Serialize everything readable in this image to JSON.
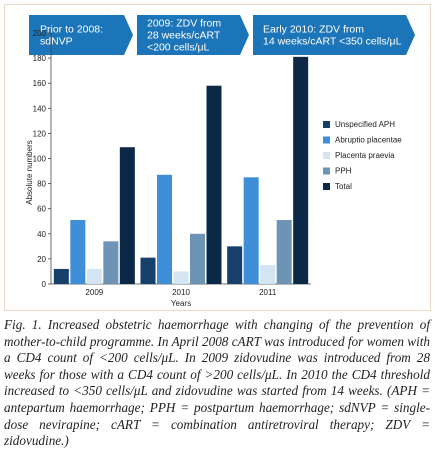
{
  "banners": [
    {
      "lines": [
        "Prior to 2008:",
        "sdNVP"
      ]
    },
    {
      "lines": [
        "2009: ZDV from",
        "28 weeks/cART",
        "<200 cells/μL"
      ]
    },
    {
      "lines": [
        "Early 2010: ZDV from",
        "14 weeks/cART <350 cells/μL"
      ]
    }
  ],
  "colors": {
    "banner": "#1d75b9",
    "border": "#e9d9c6",
    "series": [
      "#163f6b",
      "#3e8ed8",
      "#d3e5f3",
      "#6d93b5",
      "#0c2847"
    ]
  },
  "chart_data": {
    "type": "bar",
    "categories": [
      "2009",
      "2010",
      "2011"
    ],
    "series": [
      {
        "name": "Unspecified APH",
        "values": [
          12,
          21,
          30
        ]
      },
      {
        "name": "Abruptio placentae",
        "values": [
          51,
          87,
          85
        ]
      },
      {
        "name": "Placenta praevia",
        "values": [
          12,
          10,
          15
        ]
      },
      {
        "name": "PPH",
        "values": [
          34,
          40,
          51
        ]
      },
      {
        "name": "Total",
        "values": [
          109,
          158,
          181
        ]
      }
    ],
    "xlabel": "Years",
    "ylabel": "Absolute numbers",
    "ylim": [
      0,
      200
    ],
    "yticks": [
      0,
      20,
      40,
      60,
      80,
      100,
      120,
      140,
      160,
      180,
      200
    ],
    "grid": false,
    "legend": "right"
  },
  "caption": {
    "lead": "Fig. 1. Increased obstetric haemorrhage with changing of the prevention of mother-to-child programme.",
    "text": " In April 2008 cART was introduced for women with a CD4 count of <200 cells/μL. In 2009 zidovudine was introduced from 28 weeks for those with a CD4 count of >200 cells/μL. In 2010 the CD4 threshold increased to <350 cells/μL and zidovudine was started from 14 weeks. (APH = antepartum haemorrhage; PPH = postpartum haemorrhage; sdNVP = single-dose nevirapine; cART = combination antiretroviral therapy; ZDV = zidovudine.)"
  }
}
